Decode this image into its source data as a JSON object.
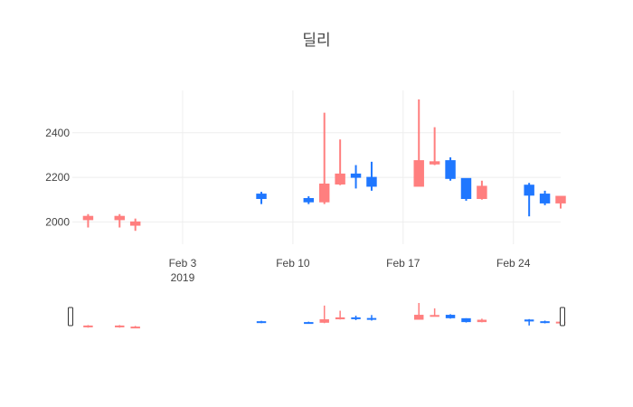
{
  "chart_data": {
    "type": "candlestick",
    "title": "딜리",
    "xlabel": "",
    "ylabel": "",
    "ylim": [
      1900,
      2590
    ],
    "x_range": [
      "2019-01-27",
      "2019-02-27"
    ],
    "yticks": [
      2000,
      2200,
      2400
    ],
    "xticks": [
      {
        "date": "2019-02-03",
        "label": "Feb 3",
        "sublabel": "2019"
      },
      {
        "date": "2019-02-10",
        "label": "Feb 10",
        "sublabel": ""
      },
      {
        "date": "2019-02-17",
        "label": "Feb 17",
        "sublabel": ""
      },
      {
        "date": "2019-02-24",
        "label": "Feb 24",
        "sublabel": ""
      }
    ],
    "increasing_color": "#1f77ff",
    "decreasing_color": "#ff7f7f",
    "grid": true,
    "rangeslider": true,
    "candles": [
      {
        "date": "2019-01-28",
        "open": 2025,
        "high": 2035,
        "low": 1975,
        "close": 2010
      },
      {
        "date": "2019-01-30",
        "open": 2025,
        "high": 2035,
        "low": 1975,
        "close": 2010
      },
      {
        "date": "2019-01-31",
        "open": 2000,
        "high": 2015,
        "low": 1960,
        "close": 1985
      },
      {
        "date": "2019-02-08",
        "open": 2105,
        "high": 2135,
        "low": 2080,
        "close": 2125
      },
      {
        "date": "2019-02-11",
        "open": 2090,
        "high": 2115,
        "low": 2080,
        "close": 2105
      },
      {
        "date": "2019-02-12",
        "open": 2170,
        "high": 2490,
        "low": 2080,
        "close": 2090
      },
      {
        "date": "2019-02-13",
        "open": 2215,
        "high": 2370,
        "low": 2165,
        "close": 2170
      },
      {
        "date": "2019-02-14",
        "open": 2200,
        "high": 2255,
        "low": 2150,
        "close": 2215
      },
      {
        "date": "2019-02-15",
        "open": 2160,
        "high": 2270,
        "low": 2140,
        "close": 2200
      },
      {
        "date": "2019-02-18",
        "open": 2275,
        "high": 2550,
        "low": 2160,
        "close": 2160
      },
      {
        "date": "2019-02-19",
        "open": 2270,
        "high": 2425,
        "low": 2255,
        "close": 2260
      },
      {
        "date": "2019-02-20",
        "open": 2195,
        "high": 2290,
        "low": 2185,
        "close": 2275
      },
      {
        "date": "2019-02-21",
        "open": 2105,
        "high": 2195,
        "low": 2095,
        "close": 2195
      },
      {
        "date": "2019-02-22",
        "open": 2160,
        "high": 2185,
        "low": 2100,
        "close": 2105
      },
      {
        "date": "2019-02-25",
        "open": 2120,
        "high": 2175,
        "low": 2025,
        "close": 2165
      },
      {
        "date": "2019-02-26",
        "open": 2085,
        "high": 2140,
        "low": 2075,
        "close": 2125
      },
      {
        "date": "2019-02-27",
        "open": 2115,
        "high": 2115,
        "low": 2060,
        "close": 2085
      }
    ]
  }
}
